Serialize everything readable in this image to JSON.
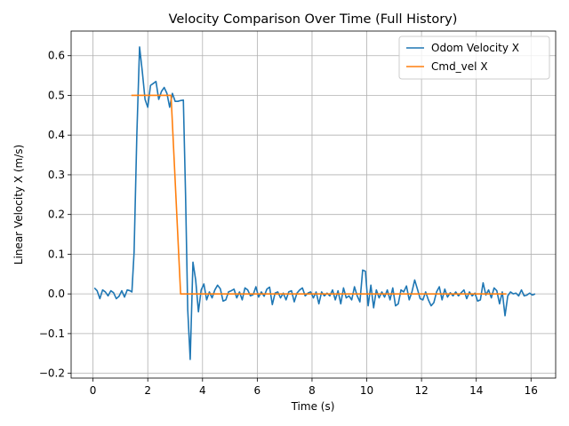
{
  "chart_data": {
    "type": "line",
    "title": "Velocity Comparison Over Time (Full History)",
    "xlabel": "Time (s)",
    "ylabel": "Linear Velocity X (m/s)",
    "xlim": [
      -0.8,
      16.9
    ],
    "ylim": [
      -0.212,
      0.662
    ],
    "xticks": [
      0,
      2,
      4,
      6,
      8,
      10,
      12,
      14,
      16
    ],
    "yticks": [
      -0.2,
      -0.1,
      0.0,
      0.1,
      0.2,
      0.3,
      0.4,
      0.5,
      0.6
    ],
    "xtick_labels": [
      "0",
      "2",
      "4",
      "6",
      "8",
      "10",
      "12",
      "14",
      "16"
    ],
    "ytick_labels": [
      "−0.2",
      "−0.1",
      "0.0",
      "0.1",
      "0.2",
      "0.3",
      "0.4",
      "0.5",
      "0.6"
    ],
    "grid": true,
    "legend_position": "top-right",
    "series": [
      {
        "name": "Odom Velocity X",
        "color": "#1f77b4",
        "x": [
          0.05,
          0.15,
          0.25,
          0.35,
          0.45,
          0.55,
          0.65,
          0.75,
          0.85,
          0.95,
          1.05,
          1.15,
          1.25,
          1.35,
          1.42,
          1.5,
          1.6,
          1.7,
          1.8,
          1.9,
          2.0,
          2.1,
          2.2,
          2.3,
          2.4,
          2.5,
          2.6,
          2.7,
          2.8,
          2.9,
          3.0,
          3.1,
          3.2,
          3.3,
          3.38,
          3.46,
          3.55,
          3.65,
          3.75,
          3.85,
          3.95,
          4.05,
          4.15,
          4.25,
          4.35,
          4.45,
          4.55,
          4.65,
          4.75,
          4.85,
          4.95,
          5.05,
          5.15,
          5.25,
          5.35,
          5.45,
          5.55,
          5.65,
          5.75,
          5.85,
          5.95,
          6.05,
          6.15,
          6.25,
          6.35,
          6.45,
          6.55,
          6.65,
          6.75,
          6.85,
          6.95,
          7.05,
          7.15,
          7.25,
          7.35,
          7.45,
          7.55,
          7.65,
          7.75,
          7.85,
          7.95,
          8.05,
          8.15,
          8.25,
          8.35,
          8.45,
          8.55,
          8.65,
          8.75,
          8.85,
          8.95,
          9.05,
          9.15,
          9.25,
          9.35,
          9.45,
          9.55,
          9.65,
          9.75,
          9.85,
          9.95,
          10.05,
          10.15,
          10.25,
          10.35,
          10.45,
          10.55,
          10.65,
          10.75,
          10.85,
          10.95,
          11.05,
          11.15,
          11.25,
          11.35,
          11.45,
          11.55,
          11.65,
          11.75,
          11.85,
          11.95,
          12.05,
          12.15,
          12.25,
          12.35,
          12.45,
          12.55,
          12.65,
          12.75,
          12.85,
          12.95,
          13.05,
          13.15,
          13.25,
          13.35,
          13.45,
          13.55,
          13.65,
          13.75,
          13.85,
          13.95,
          14.05,
          14.15,
          14.25,
          14.35,
          14.45,
          14.55,
          14.65,
          14.75,
          14.85,
          14.95,
          15.05,
          15.15,
          15.25,
          15.35,
          15.45,
          15.55,
          15.65,
          15.75,
          15.85,
          15.95,
          16.05,
          16.15
        ],
        "values": [
          0.015,
          0.008,
          -0.012,
          0.01,
          0.005,
          -0.005,
          0.008,
          0.003,
          -0.012,
          -0.006,
          0.008,
          -0.008,
          0.01,
          0.008,
          0.005,
          0.105,
          0.4,
          0.622,
          0.56,
          0.49,
          0.47,
          0.525,
          0.53,
          0.535,
          0.49,
          0.51,
          0.52,
          0.505,
          0.47,
          0.505,
          0.485,
          0.485,
          0.487,
          0.488,
          0.25,
          -0.04,
          -0.165,
          0.08,
          0.035,
          -0.045,
          0.01,
          0.025,
          -0.015,
          0.005,
          -0.01,
          0.01,
          0.022,
          0.013,
          -0.018,
          -0.015,
          0.005,
          0.008,
          0.012,
          -0.01,
          0.005,
          -0.015,
          0.015,
          0.01,
          -0.005,
          -0.002,
          0.018,
          -0.008,
          0.005,
          -0.006,
          0.012,
          0.017,
          -0.027,
          0.002,
          0.005,
          -0.01,
          0.002,
          -0.015,
          0.005,
          0.008,
          -0.02,
          0.002,
          0.01,
          0.015,
          -0.005,
          0.002,
          0.005,
          -0.01,
          0.005,
          -0.025,
          0.005,
          -0.005,
          0.002,
          -0.005,
          0.01,
          -0.015,
          0.008,
          -0.025,
          0.015,
          -0.01,
          -0.005,
          -0.015,
          0.018,
          -0.005,
          -0.02,
          0.06,
          0.057,
          -0.03,
          0.022,
          -0.035,
          0.01,
          -0.01,
          0.005,
          -0.008,
          0.01,
          -0.015,
          0.015,
          -0.03,
          -0.025,
          0.01,
          0.005,
          0.02,
          -0.015,
          0.005,
          0.035,
          0.012,
          -0.012,
          -0.015,
          0.005,
          -0.015,
          -0.03,
          -0.022,
          0.005,
          0.018,
          -0.015,
          0.012,
          -0.008,
          0.003,
          -0.005,
          0.005,
          -0.005,
          0.003,
          0.01,
          -0.012,
          0.005,
          -0.005,
          0.002,
          -0.018,
          -0.015,
          0.028,
          -0.003,
          0.01,
          -0.01,
          0.015,
          0.008,
          -0.025,
          0.005,
          -0.055,
          -0.005,
          0.005,
          0.0,
          0.002,
          -0.005,
          0.01,
          -0.005,
          -0.003,
          0.002,
          -0.003,
          0.0
        ]
      },
      {
        "name": "Cmd_vel X",
        "color": "#ff7f0e",
        "x": [
          1.4,
          2.85,
          3.2,
          15.1
        ],
        "values": [
          0.5,
          0.5,
          0.0,
          0.0
        ]
      }
    ]
  }
}
